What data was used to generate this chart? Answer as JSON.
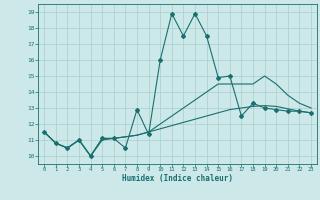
{
  "xlabel": "Humidex (Indice chaleur)",
  "xlim": [
    -0.5,
    23.5
  ],
  "ylim": [
    9.5,
    19.5
  ],
  "yticks": [
    10,
    11,
    12,
    13,
    14,
    15,
    16,
    17,
    18,
    19
  ],
  "xticks": [
    0,
    1,
    2,
    3,
    4,
    5,
    6,
    7,
    8,
    9,
    10,
    11,
    12,
    13,
    14,
    15,
    16,
    17,
    18,
    19,
    20,
    21,
    22,
    23
  ],
  "bg_color": "#cce8e8",
  "grid_color": "#aacece",
  "line_color": "#1a6f6f",
  "line1_y": [
    11.5,
    10.8,
    10.5,
    11.0,
    10.0,
    11.1,
    11.1,
    10.5,
    12.9,
    11.35,
    16.0,
    18.9,
    17.5,
    18.9,
    17.5,
    14.9,
    15.0,
    12.5,
    13.3,
    13.0,
    12.9,
    12.8,
    12.8,
    12.7
  ],
  "line2_y": [
    11.5,
    10.8,
    10.5,
    11.0,
    10.0,
    11.1,
    11.1,
    11.2,
    11.3,
    11.5,
    12.0,
    12.5,
    13.0,
    13.5,
    14.0,
    14.5,
    14.5,
    14.5,
    14.5,
    15.0,
    14.5,
    13.8,
    13.3,
    13.0
  ],
  "line3_y": [
    11.5,
    10.8,
    10.5,
    11.0,
    10.0,
    11.0,
    11.1,
    11.2,
    11.3,
    11.5,
    11.7,
    11.9,
    12.1,
    12.3,
    12.5,
    12.7,
    12.9,
    13.0,
    13.1,
    13.15,
    13.1,
    12.95,
    12.8,
    12.7
  ]
}
